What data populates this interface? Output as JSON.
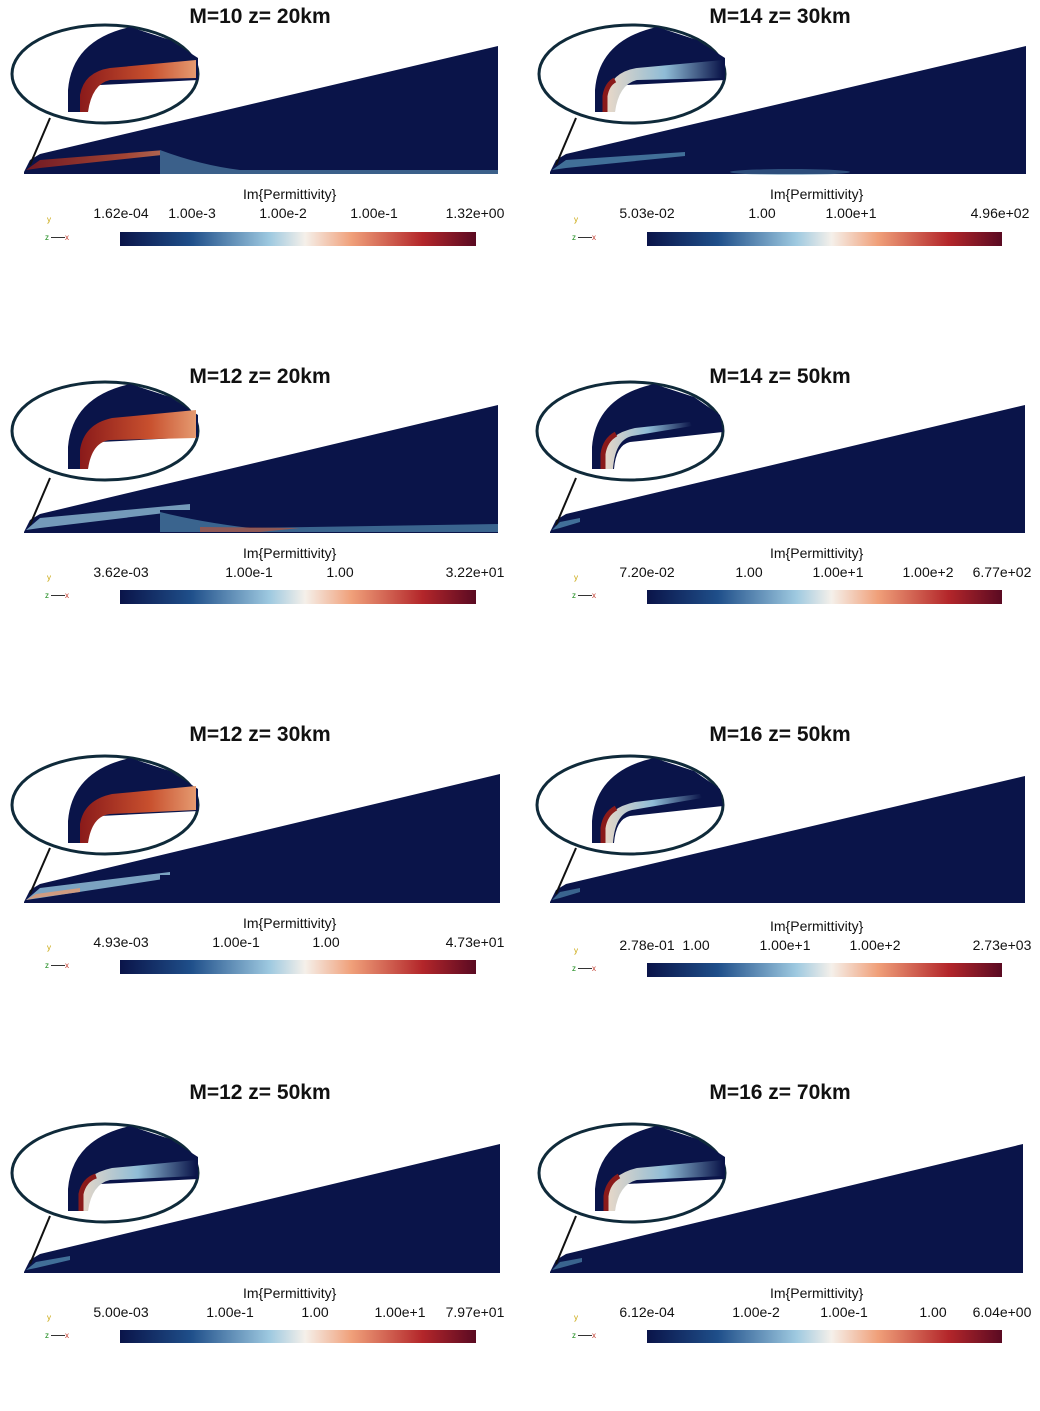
{
  "colorbar_title": "Im{Permittivity}",
  "axes": {
    "x": "x",
    "y": "y",
    "z": "z"
  },
  "colors": {
    "background": "#ffffff",
    "field": "#0a1449",
    "low": "#0a1449",
    "mid": "#f5f0ea",
    "high": "#8a0f1e"
  },
  "panels": [
    {
      "title": "M=10 z= 20km",
      "ticks": [
        "1.62e-04",
        "1.00e-3",
        "1.00e-2",
        "1.00e-1",
        "1.32e+00"
      ]
    },
    {
      "title": "M=14 z= 30km",
      "ticks": [
        "5.03e-02",
        "1.00",
        "1.00e+1",
        "4.96e+02"
      ]
    },
    {
      "title": "M=12 z= 20km",
      "ticks": [
        "3.62e-03",
        "1.00e-1",
        "1.00",
        "3.22e+01"
      ]
    },
    {
      "title": "M=14 z= 50km",
      "ticks": [
        "7.20e-02",
        "1.00",
        "1.00e+1",
        "1.00e+2",
        "6.77e+02"
      ]
    },
    {
      "title": "M=12 z= 30km",
      "ticks": [
        "4.93e-03",
        "1.00e-1",
        "1.00",
        "4.73e+01"
      ]
    },
    {
      "title": "M=16 z= 50km",
      "ticks": [
        "2.78e-01",
        "1.00",
        "1.00e+1",
        "1.00e+2",
        "2.73e+03"
      ]
    },
    {
      "title": "M=12 z= 50km",
      "ticks": [
        "5.00e-03",
        "1.00e-1",
        "1.00",
        "1.00e+1",
        "7.97e+01"
      ]
    },
    {
      "title": "M=16 z= 70km",
      "ticks": [
        "6.12e-04",
        "1.00e-2",
        "1.00e-1",
        "1.00",
        "6.04e+00"
      ]
    }
  ]
}
